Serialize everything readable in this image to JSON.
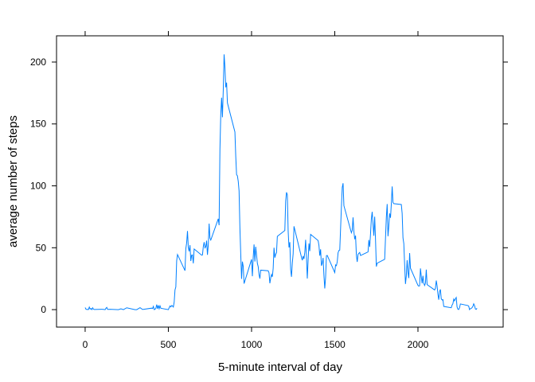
{
  "chart_data": {
    "type": "line",
    "xlabel": "5-minute interval of day",
    "ylabel": "average number of steps",
    "color": "#0080ff",
    "xlim": [
      -172,
      2512
    ],
    "ylim": [
      -14.1,
      221.2
    ],
    "xticks": [
      0,
      500,
      1000,
      1500,
      2000
    ],
    "yticks": [
      0,
      50,
      100,
      150,
      200
    ],
    "x": [
      0,
      5,
      10,
      15,
      20,
      25,
      30,
      35,
      40,
      45,
      50,
      55,
      100,
      110,
      120,
      125,
      130,
      135,
      140,
      150,
      200,
      215,
      230,
      250,
      300,
      310,
      330,
      345,
      400,
      405,
      410,
      415,
      420,
      425,
      430,
      435,
      440,
      445,
      450,
      455,
      500,
      505,
      510,
      515,
      520,
      525,
      530,
      535,
      540,
      545,
      550,
      555,
      600,
      605,
      610,
      615,
      620,
      625,
      630,
      635,
      640,
      645,
      650,
      655,
      700,
      705,
      710,
      715,
      720,
      725,
      730,
      735,
      740,
      745,
      750,
      755,
      800,
      805,
      810,
      815,
      820,
      825,
      830,
      835,
      840,
      845,
      850,
      855,
      900,
      905,
      910,
      915,
      920,
      925,
      930,
      935,
      940,
      945,
      950,
      955,
      1000,
      1005,
      1010,
      1015,
      1020,
      1025,
      1030,
      1035,
      1040,
      1045,
      1050,
      1055,
      1100,
      1105,
      1110,
      1115,
      1120,
      1125,
      1130,
      1135,
      1140,
      1145,
      1150,
      1155,
      1200,
      1205,
      1210,
      1215,
      1220,
      1225,
      1230,
      1235,
      1240,
      1245,
      1250,
      1255,
      1300,
      1305,
      1310,
      1315,
      1320,
      1325,
      1330,
      1335,
      1340,
      1345,
      1350,
      1355,
      1400,
      1405,
      1410,
      1415,
      1420,
      1425,
      1430,
      1435,
      1440,
      1445,
      1450,
      1455,
      1500,
      1505,
      1510,
      1515,
      1520,
      1525,
      1530,
      1535,
      1540,
      1545,
      1550,
      1555,
      1600,
      1605,
      1610,
      1615,
      1620,
      1625,
      1630,
      1635,
      1640,
      1645,
      1650,
      1655,
      1700,
      1705,
      1710,
      1715,
      1720,
      1725,
      1730,
      1735,
      1740,
      1745,
      1750,
      1755,
      1800,
      1805,
      1810,
      1815,
      1820,
      1825,
      1830,
      1835,
      1840,
      1845,
      1850,
      1855,
      1900,
      1905,
      1910,
      1915,
      1920,
      1925,
      1930,
      1935,
      1940,
      1945,
      1950,
      1955,
      2000,
      2005,
      2010,
      2015,
      2020,
      2025,
      2030,
      2035,
      2040,
      2045,
      2050,
      2055,
      2100,
      2105,
      2110,
      2115,
      2120,
      2125,
      2130,
      2135,
      2140,
      2145,
      2150,
      2155,
      2200,
      2205,
      2210,
      2215,
      2220,
      2225,
      2230,
      2235,
      2240,
      2245,
      2250,
      2255,
      2300,
      2305,
      2310,
      2315,
      2320,
      2325,
      2330,
      2335,
      2340,
      2345,
      2350,
      2355
    ],
    "values": [
      1.7,
      0.3,
      0.1,
      0.2,
      0.1,
      2.1,
      0.5,
      0.9,
      0,
      1.5,
      0.3,
      0.1,
      0.3,
      0.2,
      0,
      1.1,
      1.8,
      0.2,
      0.2,
      0.3,
      0,
      0.7,
      0,
      1.5,
      0,
      0,
      1.6,
      0.1,
      1.2,
      0.9,
      2.6,
      0,
      0.3,
      1.1,
      4.1,
      0.7,
      3.5,
      0.8,
      3.1,
      1.1,
      0,
      1.6,
      3,
      2.2,
      3.3,
      3,
      2.1,
      6,
      16,
      18.3,
      39.5,
      44.5,
      31.5,
      49.3,
      53.8,
      63.5,
      50,
      47.1,
      52.1,
      39.3,
      44,
      44.2,
      37.4,
      49,
      44,
      44.2,
      50.8,
      54.5,
      49.9,
      50.9,
      55.7,
      44.3,
      52.3,
      69.5,
      57.8,
      56.2,
      73.4,
      68.2,
      129.4,
      157.5,
      171.2,
      155.4,
      177.3,
      206.2,
      195.9,
      179.6,
      183.4,
      167,
      143.5,
      124,
      109.1,
      108.1,
      103.7,
      95.9,
      66.2,
      45.2,
      24.8,
      38.8,
      35,
      21,
      40.6,
      27,
      42.4,
      52.7,
      38.9,
      50.8,
      44.3,
      37.4,
      34.7,
      28.3,
      25.1,
      31.9,
      31.4,
      29.7,
      21.3,
      25.5,
      28.4,
      26.5,
      33.4,
      50,
      42,
      44.6,
      46,
      59.2,
      63.9,
      87.7,
      94.8,
      92.8,
      63.4,
      50.2,
      54.5,
      32.4,
      26.5,
      37.7,
      45.1,
      67.3,
      42.3,
      39.9,
      43.3,
      40.98,
      46.2,
      56.4,
      42.8,
      25.1,
      39.9,
      53.5,
      47.3,
      60.8,
      55.8,
      51.9,
      43.6,
      48.7,
      35.5,
      37.5,
      41.8,
      27.5,
      17.1,
      26.1,
      43.6,
      43.8,
      30,
      36.1,
      35.5,
      38.8,
      45.96,
      47.8,
      48.1,
      65.3,
      82.9,
      98.7,
      102.1,
      83.96,
      62.1,
      64.1,
      74.5,
      63.2,
      56.9,
      59.8,
      43.9,
      38.6,
      44.7,
      45.5,
      46.2,
      43.7,
      46.6,
      56.3,
      50.7,
      61.2,
      73.4,
      79,
      68.9,
      59.7,
      75.1,
      56.5,
      34.8,
      37.5,
      40.7,
      58,
      74.7,
      85.3,
      59.3,
      67.8,
      77.7,
      74.2,
      85.3,
      99.5,
      86.6,
      85.6,
      84.9,
      77.8,
      58,
      53.4,
      36.3,
      20.7,
      27.4,
      40,
      30.2,
      25.5,
      45.7,
      33.5,
      19.6,
      19,
      19.3,
      33.3,
      26.8,
      21.2,
      27.3,
      21.3,
      19.5,
      21.3,
      32.3,
      20.2,
      15.9,
      17.2,
      23.5,
      19.2,
      12.5,
      8,
      14.7,
      16.3,
      8.7,
      7.8,
      8.1,
      2.6,
      1.5,
      3.7,
      4.8,
      8.5,
      7.1,
      8.7,
      9.8,
      2.2,
      0.3,
      0.1,
      1.6,
      4.6,
      3.3,
      2.8,
      0,
      0.8,
      0.96,
      1.6,
      2.6,
      4.7,
      3.3,
      0.6,
      0.2,
      1.1
    ]
  }
}
